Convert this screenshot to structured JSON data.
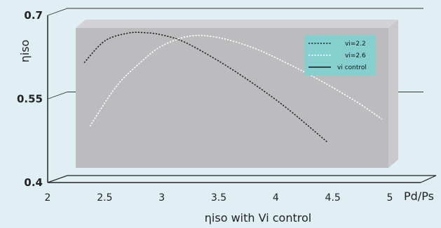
{
  "chart_data": {
    "type": "line",
    "title": "",
    "xlabel": "ηiso with Vi control",
    "ylabel": "ηiso",
    "x_axis_end_label": "Pd/Ps",
    "xlim": [
      2,
      5
    ],
    "ylim": [
      0.4,
      0.7
    ],
    "x_ticks": [
      "2",
      "2.5",
      "3",
      "3.5",
      "4",
      "4.5",
      "5"
    ],
    "y_ticks": [
      "0.4",
      "0.55",
      "0.7"
    ],
    "grid": true,
    "legend_position": "top-right",
    "series": [
      {
        "name": "vi=2.2",
        "style": "dotted",
        "color": "#222222",
        "x": [
          2.32,
          2.5,
          2.7,
          2.85,
          3.0,
          3.2,
          3.5,
          3.8,
          4.1,
          4.45
        ],
        "y": [
          0.615,
          0.654,
          0.668,
          0.669,
          0.665,
          0.652,
          0.618,
          0.578,
          0.533,
          0.473
        ]
      },
      {
        "name": "vi=2.6",
        "style": "dotted",
        "color": "#ffffff",
        "x": [
          2.37,
          2.6,
          2.8,
          3.0,
          3.25,
          3.5,
          3.8,
          4.1,
          4.4,
          4.7,
          4.93
        ],
        "y": [
          0.501,
          0.572,
          0.613,
          0.645,
          0.663,
          0.66,
          0.642,
          0.614,
          0.582,
          0.546,
          0.514
        ]
      },
      {
        "name": "vi control",
        "style": "solid",
        "color": "#111111",
        "x": [],
        "y": []
      }
    ]
  },
  "colors": {
    "background": "#dfeff3",
    "plot_area": "#bcbcbf",
    "plot_side": "#c9c9cc",
    "plot_top": "#d3d3d6",
    "legend_bg": "#86cfcf"
  }
}
